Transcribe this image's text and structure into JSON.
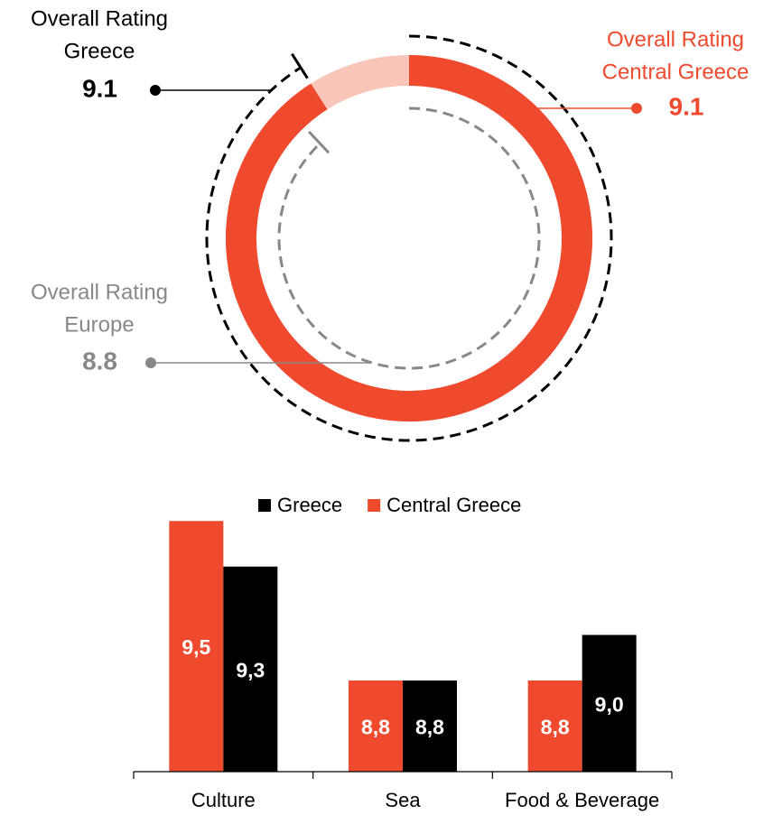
{
  "chart_data": [
    {
      "type": "gauge",
      "ylim": [
        0,
        10
      ],
      "series": [
        {
          "label_lines": [
            "Overall Rating",
            "Greece"
          ],
          "value": 9.1,
          "color": "#000000",
          "style": "dashed"
        },
        {
          "label_lines": [
            "Overall Rating",
            "Central Greece"
          ],
          "value": 9.1,
          "color": "#f04a2e",
          "style": "solid"
        },
        {
          "label_lines": [
            "Overall Rating",
            "Europe"
          ],
          "value": 8.8,
          "color": "#888888",
          "style": "dashed"
        }
      ]
    },
    {
      "type": "bar",
      "categories": [
        "Culture",
        "Sea",
        "Food & Beverage"
      ],
      "ylim": [
        8.4,
        9.6
      ],
      "series": [
        {
          "name": "Central Greece",
          "color": "#f04a2e",
          "values": [
            9.5,
            8.8,
            8.8
          ],
          "value_labels": [
            "9,5",
            "8,8",
            "8,8"
          ]
        },
        {
          "name": "Greece",
          "color": "#000000",
          "values": [
            9.3,
            8.8,
            9.0
          ],
          "value_labels": [
            "9,3",
            "8,8",
            "9,0"
          ]
        }
      ]
    }
  ]
}
